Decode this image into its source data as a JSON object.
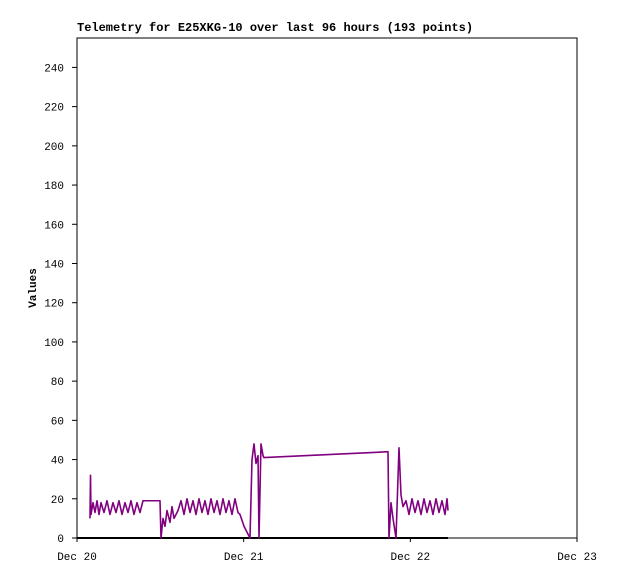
{
  "chart_data": {
    "type": "line",
    "title": "Telemetry for E25XKG-10 over last 96 hours (193 points)",
    "y_label": "Values",
    "xlim": [
      0,
      3
    ],
    "xticks": [
      {
        "value": 0,
        "label": "Dec 20"
      },
      {
        "value": 1,
        "label": "Dec 21"
      },
      {
        "value": 2,
        "label": "Dec 22"
      },
      {
        "value": 3,
        "label": "Dec 23"
      }
    ],
    "ylim": [
      0,
      255
    ],
    "yticks": [
      0,
      20,
      40,
      60,
      80,
      100,
      120,
      140,
      160,
      180,
      200,
      220,
      240
    ],
    "series": [
      {
        "color": "#000000",
        "x": [
          0,
          2.226
        ],
        "values": [
          0,
          0
        ]
      },
      {
        "color": "#800080",
        "x": [
          0.078,
          0.081,
          0.084,
          0.096,
          0.108,
          0.12,
          0.132,
          0.144,
          0.162,
          0.18,
          0.198,
          0.216,
          0.234,
          0.252,
          0.27,
          0.288,
          0.306,
          0.324,
          0.342,
          0.36,
          0.378,
          0.396,
          0.414,
          0.498,
          0.504,
          0.516,
          0.528,
          0.54,
          0.558,
          0.57,
          0.582,
          0.594,
          0.606,
          0.624,
          0.642,
          0.66,
          0.678,
          0.696,
          0.714,
          0.732,
          0.75,
          0.768,
          0.786,
          0.804,
          0.822,
          0.84,
          0.858,
          0.876,
          0.894,
          0.912,
          0.93,
          0.948,
          0.966,
          0.978,
          1.002,
          1.026,
          1.038,
          1.05,
          1.062,
          1.074,
          1.086,
          1.092,
          1.104,
          1.116,
          1.122,
          1.866,
          1.872,
          1.884,
          1.896,
          1.914,
          1.932,
          1.944,
          1.956,
          1.974,
          1.992,
          2.01,
          2.028,
          2.046,
          2.064,
          2.082,
          2.1,
          2.118,
          2.136,
          2.154,
          2.172,
          2.19,
          2.208,
          2.22,
          2.226
        ],
        "values": [
          10,
          32,
          12,
          18,
          13,
          19,
          12,
          18,
          13,
          19,
          12,
          18,
          13,
          19,
          12,
          18,
          13,
          19,
          12,
          18,
          13,
          19,
          19,
          19,
          0,
          10,
          6,
          14,
          8,
          16,
          10,
          12,
          14,
          19,
          12,
          20,
          13,
          19,
          12,
          20,
          13,
          19,
          12,
          20,
          13,
          19,
          12,
          20,
          13,
          19,
          12,
          20,
          13,
          12,
          6,
          2,
          0,
          40,
          48,
          38,
          42,
          0,
          48,
          42,
          41,
          44,
          0,
          18,
          10,
          0,
          46,
          22,
          16,
          19,
          12,
          20,
          13,
          19,
          12,
          20,
          13,
          19,
          12,
          20,
          13,
          19,
          12,
          20,
          14
        ]
      }
    ]
  }
}
